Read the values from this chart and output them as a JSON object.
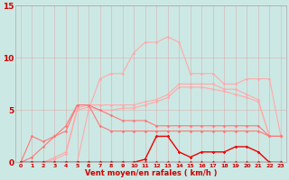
{
  "x": [
    0,
    1,
    2,
    3,
    4,
    5,
    6,
    7,
    8,
    9,
    10,
    11,
    12,
    13,
    14,
    15,
    16,
    17,
    18,
    19,
    20,
    21,
    22,
    23
  ],
  "line_light_volatile": [
    0,
    0,
    0,
    0,
    0,
    0,
    5,
    8,
    8.5,
    8.5,
    10.5,
    11.5,
    11.5,
    12,
    11.5,
    8.5,
    8.5,
    8.5,
    7.5,
    7.5,
    8,
    8,
    8,
    2.5
  ],
  "line_light_smooth_hi": [
    0,
    0,
    0,
    0.5,
    1,
    5.2,
    5.5,
    5.5,
    5.5,
    5.5,
    5.5,
    5.8,
    6,
    6.5,
    7.5,
    7.5,
    7.5,
    7.5,
    7,
    7,
    6.5,
    6,
    2.5,
    2.5
  ],
  "line_light_smooth_lo": [
    0,
    0,
    0,
    0.3,
    0.8,
    5.0,
    5.3,
    5.0,
    5.0,
    5.2,
    5.2,
    5.5,
    5.8,
    6.2,
    7.2,
    7.2,
    7.2,
    7.0,
    6.8,
    6.5,
    6.2,
    5.8,
    2.5,
    2.5
  ],
  "line_medium_wavy": [
    0,
    2.5,
    2,
    2.5,
    3,
    5.5,
    5.5,
    5,
    4.5,
    4,
    4,
    4,
    3.5,
    3.5,
    3.5,
    3.5,
    3.5,
    3.5,
    3.5,
    3.5,
    3.5,
    3.5,
    2.5,
    2.5
  ],
  "line_medium_low": [
    0,
    0.5,
    1.5,
    2.5,
    3.5,
    5.5,
    5.5,
    3.5,
    3,
    3,
    3,
    3,
    3,
    3,
    3,
    3,
    3,
    3,
    3,
    3,
    3,
    3,
    2.5,
    2.5
  ],
  "line_red_hump": [
    0,
    0,
    0,
    0,
    0,
    0,
    0,
    0,
    0,
    0,
    0,
    0.3,
    2.5,
    2.5,
    1,
    0.5,
    1,
    1,
    1,
    1.5,
    1.5,
    1,
    0,
    0
  ],
  "line_red_flat": [
    0,
    0,
    0,
    0,
    0,
    0,
    0,
    0,
    0,
    0,
    0,
    0,
    0,
    0,
    0,
    0,
    0,
    0,
    0,
    0,
    0,
    0,
    0,
    0
  ],
  "bg_color": "#cce8e4",
  "grid_color": "#dd9999",
  "color_light": "#ffaaaa",
  "color_medium": "#ff7777",
  "color_bright": "#ee0000",
  "xlabel": "Vent moyen/en rafales ( km/h )",
  "ylabel_ticks": [
    0,
    5,
    10,
    15
  ],
  "xlim": [
    -0.5,
    23.5
  ],
  "ylim": [
    0,
    15
  ]
}
